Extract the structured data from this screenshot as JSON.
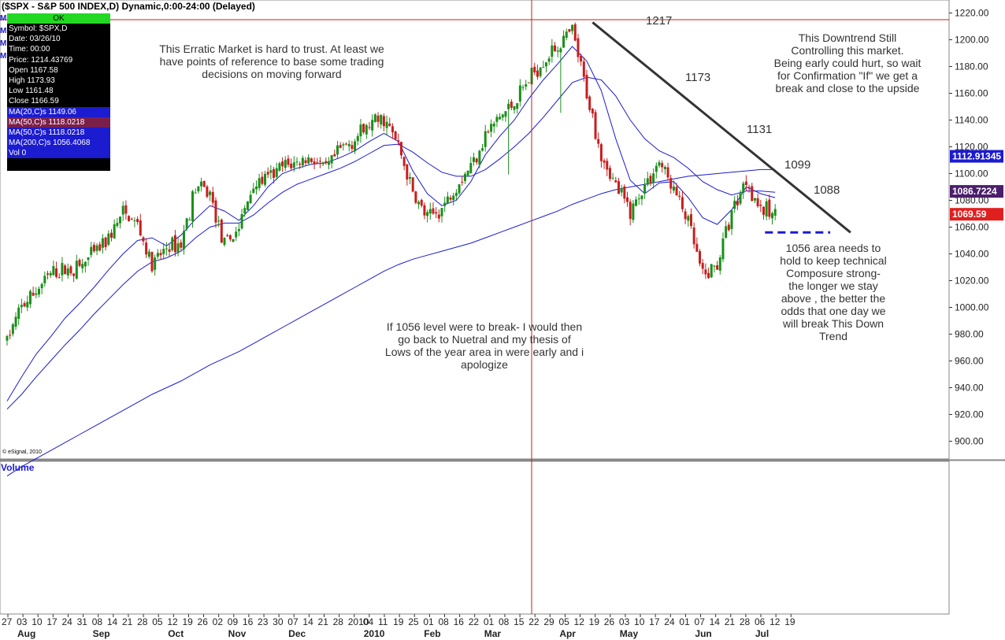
{
  "header": {
    "title": "($SPX - S&P 500 INDEX,D) Dynamic,0:00-24:00 (Delayed)"
  },
  "data_window": {
    "status": "OK",
    "rows": [
      "Symbol: $SPX,D",
      "Date: 03/26/10",
      "Time: 00:00",
      "Price: 1214.43769",
      "Open 1167.58",
      "High 1173.93",
      "Low 1161.48",
      "Close 1166.59"
    ],
    "ma_rows": [
      "MA(20,C)s 1149.06",
      "MA(50,C)s 1118.0218",
      "MA(50,C)s 1118.0218",
      "MA(200,C)s 1056.4068"
    ],
    "vol_row": "Vol 0",
    "left_markers": [
      "M",
      "M",
      "M",
      "M"
    ]
  },
  "annotations": {
    "erratic": [
      "This Erratic Market is hard to trust.  At least we",
      "have points of reference to base some trading",
      "decisions on moving forward"
    ],
    "downtrend": [
      "This Downtrend Still",
      "Controlling this market.",
      "Being early could hurt, so wait",
      "for Confirmation \"If\" we get a",
      "break and close to the upside"
    ],
    "break1056": [
      "If 1056 level were to break- I would then",
      "go back to Nuetral and my thesis of",
      "Lows of the year area in were early and i",
      "apologize"
    ],
    "hold1056": [
      "1056 area needs to",
      "hold to keep technical",
      "Composure strong-",
      "the longer we stay",
      "above , the better the",
      "odds that one day we",
      "will break This Down",
      "Trend"
    ],
    "levels": [
      "1217",
      "1173",
      "1131",
      "1099",
      "1088"
    ]
  },
  "volume_label": "Volume",
  "copyright": "© eSignal, 2010",
  "colors": {
    "up": "#1a8f1a",
    "down": "#c81e1e",
    "ma": "#1b1bd0",
    "ma_alt": "#7a1f4a",
    "trend": "#333333",
    "cursor": "#c81e1e",
    "support": "#1b1bd0",
    "tag_blue": "#1b1bd0",
    "tag_purple": "#4b1e6b",
    "tag_red": "#e0201f"
  },
  "chart_data": {
    "type": "candlestick",
    "title": "($SPX - S&P 500 INDEX,D) Dynamic,0:00-24:00 (Delayed)",
    "y_ticks": [
      "1220.00",
      "1200.00",
      "1180.00",
      "1160.00",
      "1140.00",
      "1120.00",
      "1100.00",
      "1080.00",
      "1060.00",
      "1040.00",
      "1020.00",
      "1000.00",
      "980.00",
      "960.00",
      "940.00",
      "920.00",
      "900.00"
    ],
    "ylim": [
      888,
      1226
    ],
    "x_day_labels": [
      "27",
      "03",
      "10",
      "17",
      "24",
      "31",
      "08",
      "14",
      "21",
      "28",
      "05",
      "12",
      "19",
      "26",
      "02",
      "09",
      "16",
      "23",
      "30",
      "07",
      "14",
      "21",
      "28",
      "2010",
      "04",
      "11",
      "19",
      "25",
      "01",
      "08",
      "16",
      "22",
      "01",
      "08",
      "15",
      "22",
      "29",
      "05",
      "12",
      "19",
      "26",
      "03",
      "10",
      "17",
      "24",
      "01",
      "07",
      "14",
      "21",
      "28",
      "06",
      "12",
      "19"
    ],
    "x_month_labels": [
      {
        "label": "Aug",
        "week": 0
      },
      {
        "label": "Sep",
        "week": 5
      },
      {
        "label": "Oct",
        "week": 10
      },
      {
        "label": "Nov",
        "week": 14
      },
      {
        "label": "Dec",
        "week": 18
      },
      {
        "label": "2010",
        "week": 23
      },
      {
        "label": "Feb",
        "week": 27
      },
      {
        "label": "Mar",
        "week": 31
      },
      {
        "label": "Apr",
        "week": 36
      },
      {
        "label": "May",
        "week": 40
      },
      {
        "label": "Jun",
        "week": 45
      },
      {
        "label": "Jul",
        "week": 49
      }
    ],
    "weekly_closes": [
      976,
      1000,
      1012,
      1025,
      1028,
      1030,
      1040,
      1052,
      1070,
      1062,
      1030,
      1045,
      1048,
      1090,
      1085,
      1045,
      1060,
      1092,
      1096,
      1105,
      1108,
      1112,
      1102,
      1118,
      1126,
      1136,
      1141,
      1121,
      1085,
      1066,
      1074,
      1092,
      1106,
      1129,
      1142,
      1153,
      1170,
      1185,
      1195,
      1206,
      1160,
      1115,
      1090,
      1072,
      1091,
      1109,
      1088,
      1064,
      1022,
      1032,
      1072,
      1096,
      1073,
      1069
    ],
    "price_tags": [
      {
        "value": "1112.91345",
        "price": 1112.9
      },
      {
        "value": "1086.7224",
        "price": 1086.7
      },
      {
        "value": "1069.59",
        "price": 1069.6
      }
    ],
    "moving_averages": [
      {
        "weekly": [
          930,
          948,
          965,
          978,
          992,
          1003,
          1015,
          1028,
          1040,
          1050,
          1052,
          1046,
          1054,
          1066,
          1076,
          1072,
          1065,
          1076,
          1090,
          1100,
          1104,
          1107,
          1108,
          1112,
          1117,
          1124,
          1130,
          1124,
          1102,
          1085,
          1076,
          1080,
          1094,
          1114,
          1128,
          1140,
          1156,
          1170,
          1182,
          1195,
          1184,
          1162,
          1126,
          1095,
          1085,
          1093,
          1094,
          1082,
          1067,
          1062,
          1073,
          1090,
          1085,
          1082
        ]
      },
      {
        "weekly": [
          924,
          935,
          948,
          960,
          972,
          983,
          995,
          1006,
          1017,
          1027,
          1034,
          1037,
          1042,
          1052,
          1060,
          1063,
          1063,
          1069,
          1078,
          1086,
          1092,
          1096,
          1100,
          1104,
          1109,
          1115,
          1121,
          1122,
          1116,
          1108,
          1101,
          1098,
          1098,
          1103,
          1111,
          1120,
          1130,
          1142,
          1155,
          1168,
          1172,
          1170,
          1158,
          1140,
          1126,
          1117,
          1112,
          1104,
          1094,
          1088,
          1084,
          1087,
          1087,
          1086
        ]
      },
      {
        "weekly": [
          874,
          881,
          887,
          893,
          899,
          905,
          911,
          917,
          923,
          929,
          935,
          940,
          945,
          951,
          957,
          962,
          967,
          973,
          979,
          985,
          991,
          997,
          1003,
          1009,
          1015,
          1021,
          1027,
          1032,
          1036,
          1039,
          1042,
          1045,
          1048,
          1052,
          1056,
          1060,
          1064,
          1068,
          1072,
          1077,
          1081,
          1085,
          1088,
          1090,
          1092,
          1094,
          1096,
          1098,
          1099,
          1100,
          1101,
          1102,
          1103,
          1103
        ]
      }
    ],
    "trendline": {
      "from_price": 1213,
      "to_price": 1056
    },
    "support": {
      "price": 1056
    },
    "cursor": {
      "date": "03/26/10"
    }
  }
}
